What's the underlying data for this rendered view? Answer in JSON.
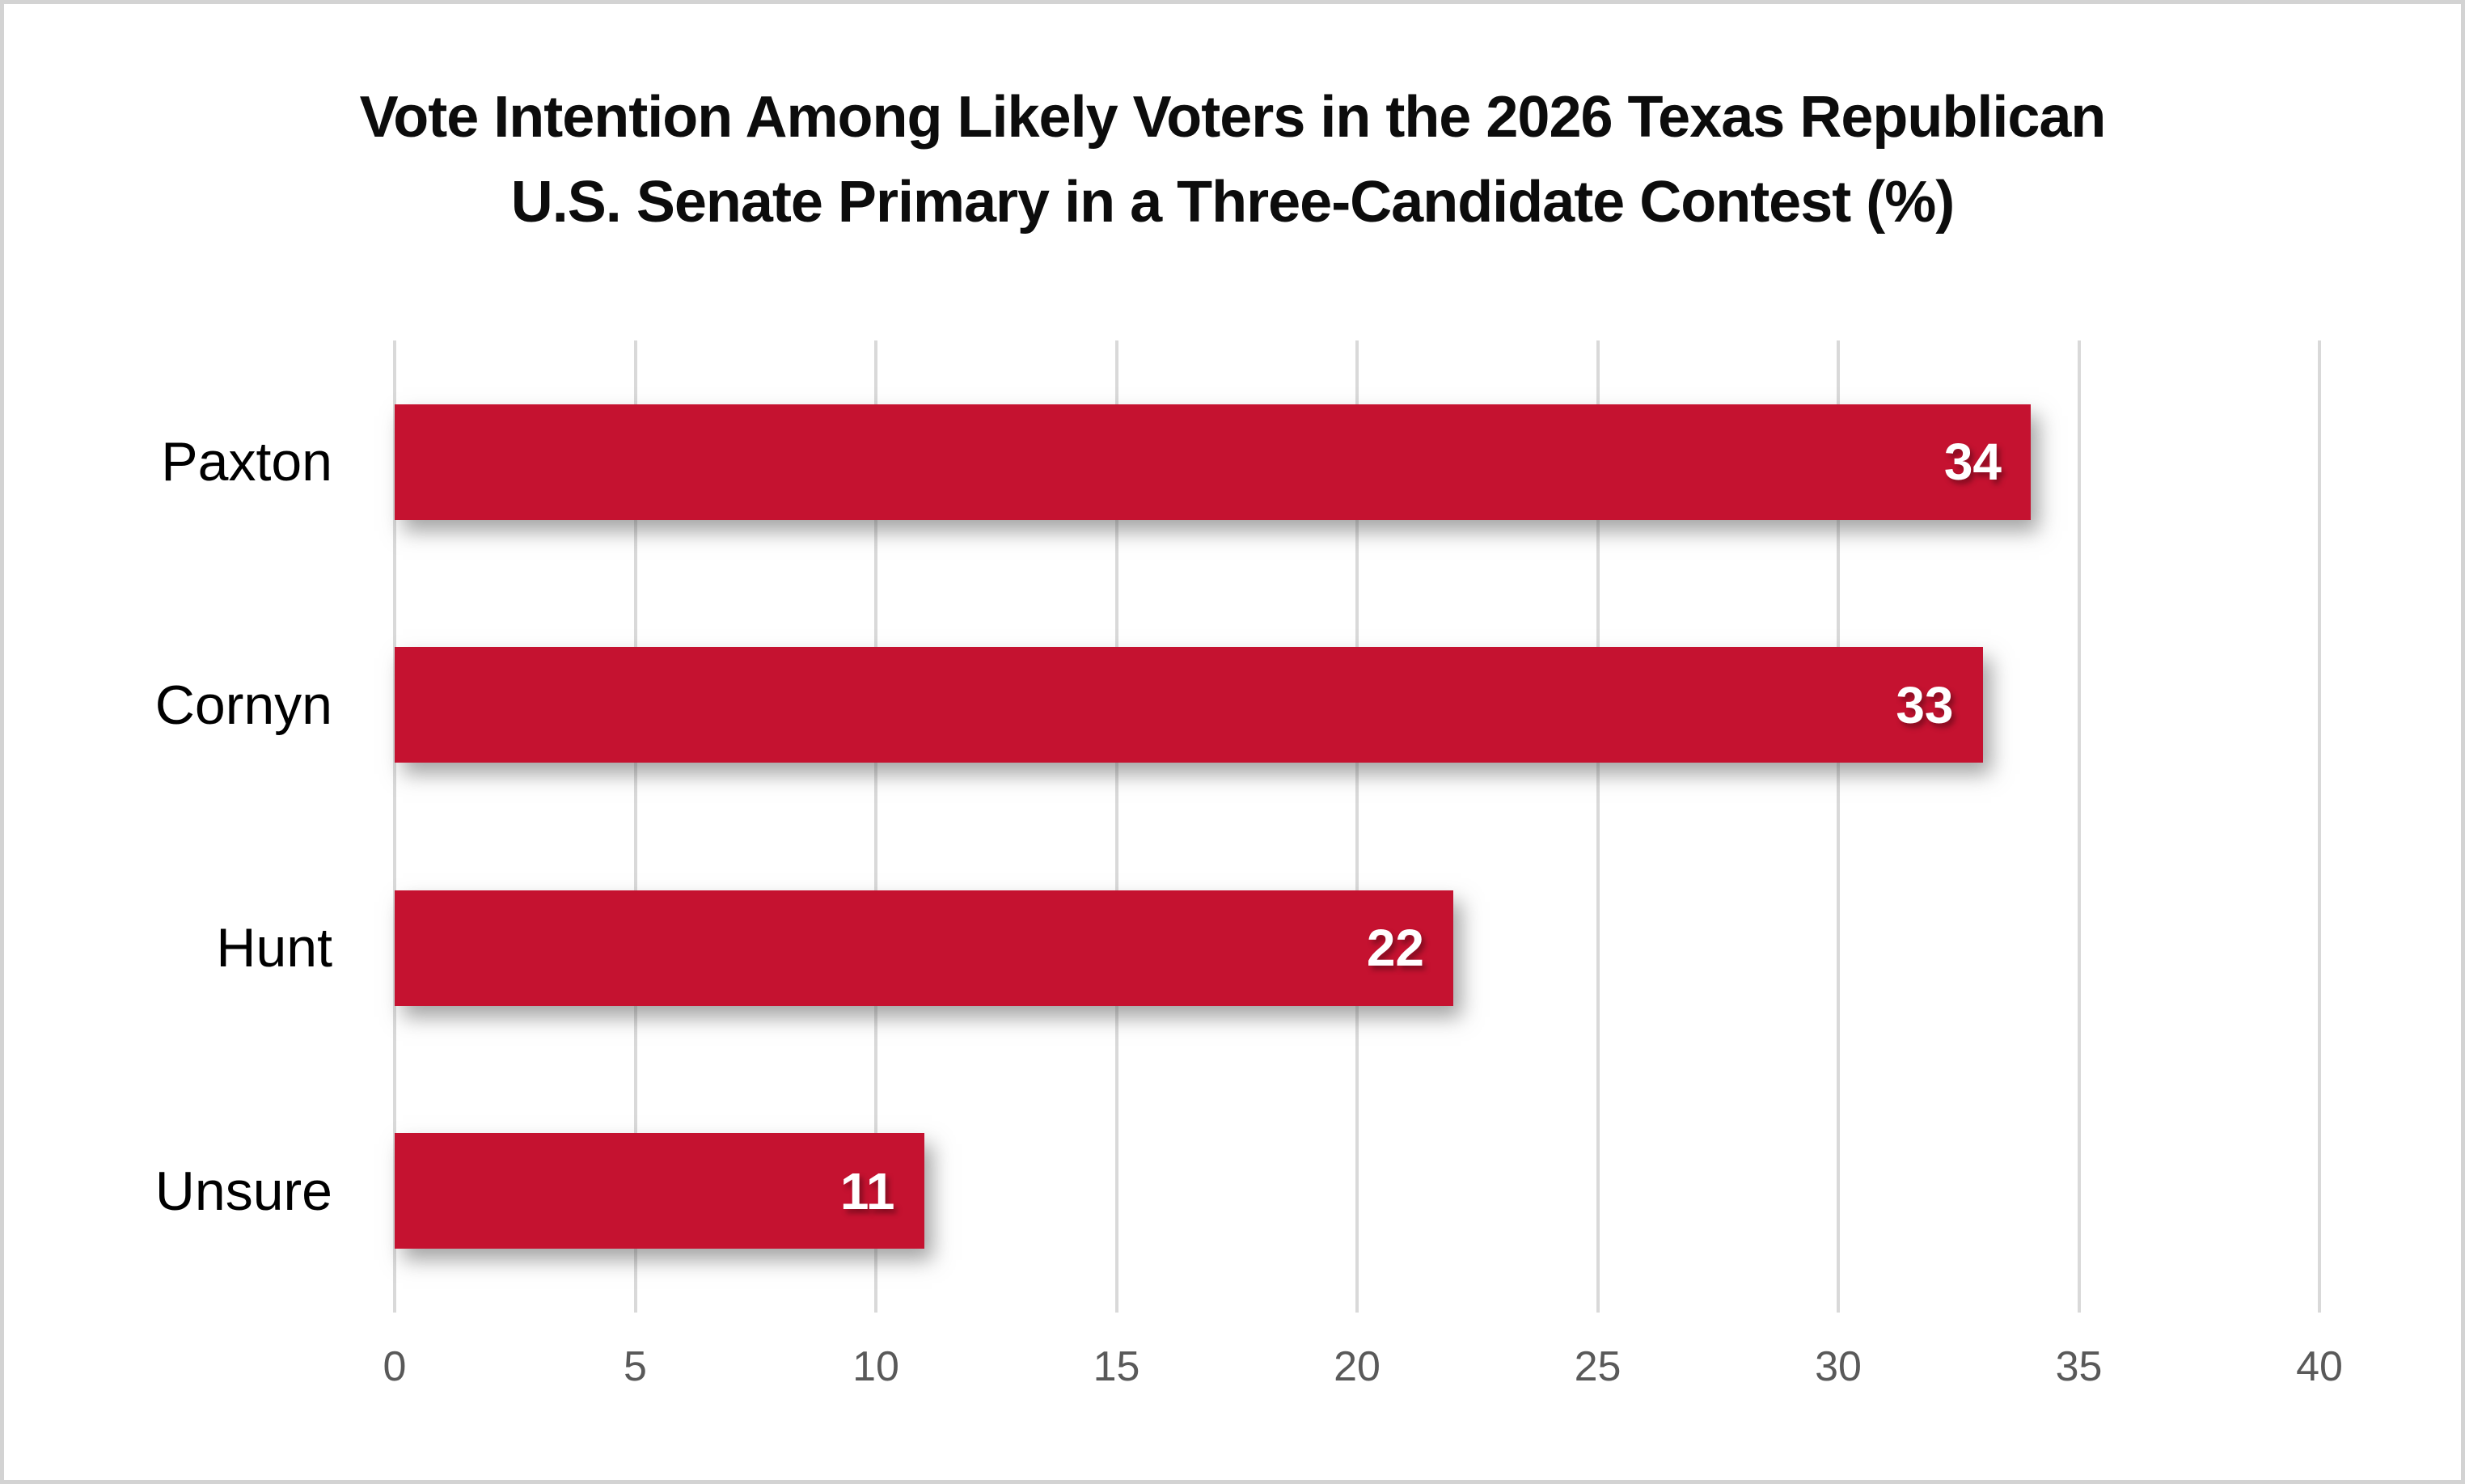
{
  "title_display": "Vote Intention Among Likely Voters in the 2026 Texas Republican\nU.S. Senate Primary in a Three-Candidate Contest (%)",
  "chart_data": {
    "type": "bar",
    "orientation": "horizontal",
    "title": "Vote Intention Among Likely Voters in the 2026 Texas Republican U.S. Senate Primary in a Three-Candidate Contest (%)",
    "categories": [
      "Paxton",
      "Cornyn",
      "Hunt",
      "Unsure"
    ],
    "values": [
      34,
      33,
      22,
      11
    ],
    "xlabel": "",
    "ylabel": "",
    "xlim": [
      0,
      40
    ],
    "xticks": [
      0,
      5,
      10,
      15,
      20,
      25,
      30,
      35,
      40
    ],
    "grid": "vertical-only",
    "legend": "none",
    "colors": {
      "bar": "#c51230",
      "bar_value_label": "#ffffff",
      "gridline": "#d9d9d9",
      "tick_label": "#595959",
      "title_text": "#0c0c0c",
      "category_label": "#000000",
      "page_border": "#d3d3d3",
      "background": "#ffffff"
    }
  }
}
